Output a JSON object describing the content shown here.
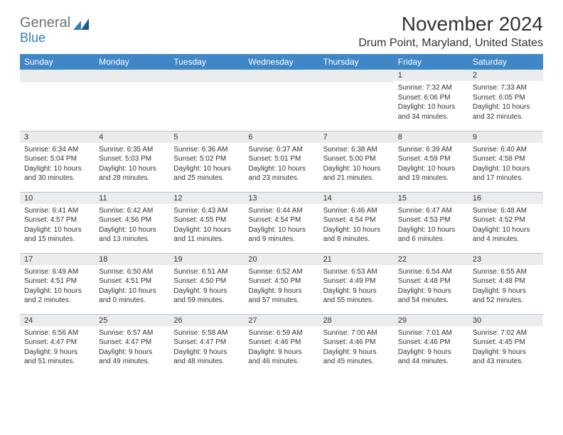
{
  "logo": {
    "text_top": "General",
    "text_bottom": "Blue"
  },
  "title": "November 2024",
  "location": "Drum Point, Maryland, United States",
  "colors": {
    "header_bg": "#3f87c7",
    "header_fg": "#ffffff",
    "dayheader_bg": "#ebecee",
    "border": "#b7c2cc",
    "text": "#333333",
    "logo_gray": "#6b7177",
    "logo_blue": "#2f7fc2"
  },
  "weekdays": [
    "Sunday",
    "Monday",
    "Tuesday",
    "Wednesday",
    "Thursday",
    "Friday",
    "Saturday"
  ],
  "weeks": [
    [
      {
        "day": "",
        "sunrise": "",
        "sunset": "",
        "daylight": ""
      },
      {
        "day": "",
        "sunrise": "",
        "sunset": "",
        "daylight": ""
      },
      {
        "day": "",
        "sunrise": "",
        "sunset": "",
        "daylight": ""
      },
      {
        "day": "",
        "sunrise": "",
        "sunset": "",
        "daylight": ""
      },
      {
        "day": "",
        "sunrise": "",
        "sunset": "",
        "daylight": ""
      },
      {
        "day": "1",
        "sunrise": "Sunrise: 7:32 AM",
        "sunset": "Sunset: 6:06 PM",
        "daylight": "Daylight: 10 hours and 34 minutes."
      },
      {
        "day": "2",
        "sunrise": "Sunrise: 7:33 AM",
        "sunset": "Sunset: 6:05 PM",
        "daylight": "Daylight: 10 hours and 32 minutes."
      }
    ],
    [
      {
        "day": "3",
        "sunrise": "Sunrise: 6:34 AM",
        "sunset": "Sunset: 5:04 PM",
        "daylight": "Daylight: 10 hours and 30 minutes."
      },
      {
        "day": "4",
        "sunrise": "Sunrise: 6:35 AM",
        "sunset": "Sunset: 5:03 PM",
        "daylight": "Daylight: 10 hours and 28 minutes."
      },
      {
        "day": "5",
        "sunrise": "Sunrise: 6:36 AM",
        "sunset": "Sunset: 5:02 PM",
        "daylight": "Daylight: 10 hours and 25 minutes."
      },
      {
        "day": "6",
        "sunrise": "Sunrise: 6:37 AM",
        "sunset": "Sunset: 5:01 PM",
        "daylight": "Daylight: 10 hours and 23 minutes."
      },
      {
        "day": "7",
        "sunrise": "Sunrise: 6:38 AM",
        "sunset": "Sunset: 5:00 PM",
        "daylight": "Daylight: 10 hours and 21 minutes."
      },
      {
        "day": "8",
        "sunrise": "Sunrise: 6:39 AM",
        "sunset": "Sunset: 4:59 PM",
        "daylight": "Daylight: 10 hours and 19 minutes."
      },
      {
        "day": "9",
        "sunrise": "Sunrise: 6:40 AM",
        "sunset": "Sunset: 4:58 PM",
        "daylight": "Daylight: 10 hours and 17 minutes."
      }
    ],
    [
      {
        "day": "10",
        "sunrise": "Sunrise: 6:41 AM",
        "sunset": "Sunset: 4:57 PM",
        "daylight": "Daylight: 10 hours and 15 minutes."
      },
      {
        "day": "11",
        "sunrise": "Sunrise: 6:42 AM",
        "sunset": "Sunset: 4:56 PM",
        "daylight": "Daylight: 10 hours and 13 minutes."
      },
      {
        "day": "12",
        "sunrise": "Sunrise: 6:43 AM",
        "sunset": "Sunset: 4:55 PM",
        "daylight": "Daylight: 10 hours and 11 minutes."
      },
      {
        "day": "13",
        "sunrise": "Sunrise: 6:44 AM",
        "sunset": "Sunset: 4:54 PM",
        "daylight": "Daylight: 10 hours and 9 minutes."
      },
      {
        "day": "14",
        "sunrise": "Sunrise: 6:46 AM",
        "sunset": "Sunset: 4:54 PM",
        "daylight": "Daylight: 10 hours and 8 minutes."
      },
      {
        "day": "15",
        "sunrise": "Sunrise: 6:47 AM",
        "sunset": "Sunset: 4:53 PM",
        "daylight": "Daylight: 10 hours and 6 minutes."
      },
      {
        "day": "16",
        "sunrise": "Sunrise: 6:48 AM",
        "sunset": "Sunset: 4:52 PM",
        "daylight": "Daylight: 10 hours and 4 minutes."
      }
    ],
    [
      {
        "day": "17",
        "sunrise": "Sunrise: 6:49 AM",
        "sunset": "Sunset: 4:51 PM",
        "daylight": "Daylight: 10 hours and 2 minutes."
      },
      {
        "day": "18",
        "sunrise": "Sunrise: 6:50 AM",
        "sunset": "Sunset: 4:51 PM",
        "daylight": "Daylight: 10 hours and 0 minutes."
      },
      {
        "day": "19",
        "sunrise": "Sunrise: 6:51 AM",
        "sunset": "Sunset: 4:50 PM",
        "daylight": "Daylight: 9 hours and 59 minutes."
      },
      {
        "day": "20",
        "sunrise": "Sunrise: 6:52 AM",
        "sunset": "Sunset: 4:50 PM",
        "daylight": "Daylight: 9 hours and 57 minutes."
      },
      {
        "day": "21",
        "sunrise": "Sunrise: 6:53 AM",
        "sunset": "Sunset: 4:49 PM",
        "daylight": "Daylight: 9 hours and 55 minutes."
      },
      {
        "day": "22",
        "sunrise": "Sunrise: 6:54 AM",
        "sunset": "Sunset: 4:48 PM",
        "daylight": "Daylight: 9 hours and 54 minutes."
      },
      {
        "day": "23",
        "sunrise": "Sunrise: 6:55 AM",
        "sunset": "Sunset: 4:48 PM",
        "daylight": "Daylight: 9 hours and 52 minutes."
      }
    ],
    [
      {
        "day": "24",
        "sunrise": "Sunrise: 6:56 AM",
        "sunset": "Sunset: 4:47 PM",
        "daylight": "Daylight: 9 hours and 51 minutes."
      },
      {
        "day": "25",
        "sunrise": "Sunrise: 6:57 AM",
        "sunset": "Sunset: 4:47 PM",
        "daylight": "Daylight: 9 hours and 49 minutes."
      },
      {
        "day": "26",
        "sunrise": "Sunrise: 6:58 AM",
        "sunset": "Sunset: 4:47 PM",
        "daylight": "Daylight: 9 hours and 48 minutes."
      },
      {
        "day": "27",
        "sunrise": "Sunrise: 6:59 AM",
        "sunset": "Sunset: 4:46 PM",
        "daylight": "Daylight: 9 hours and 46 minutes."
      },
      {
        "day": "28",
        "sunrise": "Sunrise: 7:00 AM",
        "sunset": "Sunset: 4:46 PM",
        "daylight": "Daylight: 9 hours and 45 minutes."
      },
      {
        "day": "29",
        "sunrise": "Sunrise: 7:01 AM",
        "sunset": "Sunset: 4:46 PM",
        "daylight": "Daylight: 9 hours and 44 minutes."
      },
      {
        "day": "30",
        "sunrise": "Sunrise: 7:02 AM",
        "sunset": "Sunset: 4:45 PM",
        "daylight": "Daylight: 9 hours and 43 minutes."
      }
    ]
  ]
}
